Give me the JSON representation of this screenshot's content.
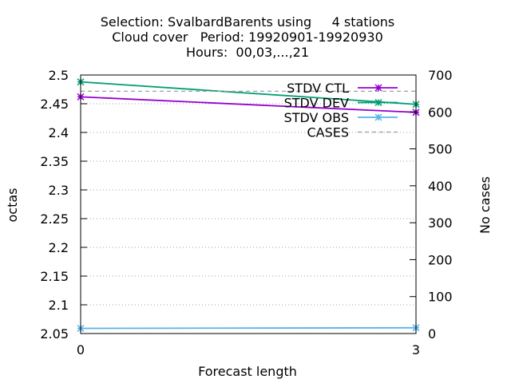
{
  "chart_data": {
    "type": "line",
    "title_lines": [
      "Selection: SvalbardBarents using     4 stations",
      "Cloud cover   Period: 19920901-19920930",
      "Hours:  00,03,...,21"
    ],
    "xlabel": "Forecast length",
    "ylabel": "octas",
    "y2label": "No cases",
    "x": [
      0,
      3
    ],
    "xlim": [
      0,
      3
    ],
    "x_ticks": [
      "0",
      "3"
    ],
    "ylim": [
      2.05,
      2.5
    ],
    "y_ticks": [
      "2.05",
      "2.1",
      "2.15",
      "2.2",
      "2.25",
      "2.3",
      "2.35",
      "2.4",
      "2.45",
      "2.5"
    ],
    "y2lim": [
      0,
      700
    ],
    "y2_ticks": [
      "0",
      "100",
      "200",
      "300",
      "400",
      "500",
      "600",
      "700"
    ],
    "grid": "horizontal dotted",
    "legend_position": "top-right",
    "series": [
      {
        "name": "STDV CTL",
        "axis": "y",
        "color": "#9400d3",
        "marker": "x-star",
        "values": [
          2.462,
          2.435
        ]
      },
      {
        "name": "STDV DEV",
        "axis": "y",
        "color": "#009e73",
        "marker": "x-star",
        "values": [
          2.488,
          2.449
        ]
      },
      {
        "name": "STDV OBS",
        "axis": "y",
        "color": "#56b4e9",
        "marker": "x-star",
        "values": [
          2.059,
          2.06
        ]
      },
      {
        "name": "CASES",
        "axis": "y2",
        "color": "#a0a0a0",
        "dash": true,
        "marker": "none",
        "values": [
          656,
          656
        ]
      }
    ]
  }
}
